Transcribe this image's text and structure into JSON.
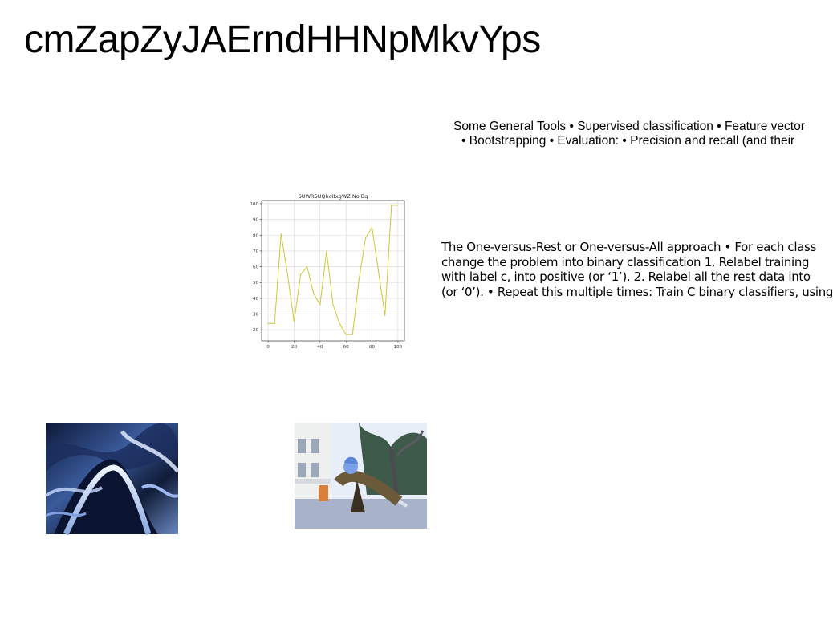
{
  "slide": {
    "title": "cmZapZyJAErndHHNpMkvYps",
    "bullets_line1": "Some General Tools • Supervised classification • Feature vector",
    "bullets_line2": "• Bootstrapping • Evaluation: • Precision and recall (and their",
    "ovr_lines": [
      "The One-versus-Rest or One-versus-All approach • For each class",
      "change the problem into binary classification 1. Relabel training",
      "with label c, into positive (or ‘1’). 2. Relabel all the rest data into",
      "(or ‘0’). • Repeat this multiple times: Train C binary classifiers, using"
    ]
  },
  "chart_data": {
    "type": "line",
    "title": "SUWRSUQhdIfxgWZ No Bq",
    "xlabel": "",
    "ylabel": "",
    "xlim": [
      -5,
      105
    ],
    "ylim": [
      13,
      102
    ],
    "grid": true,
    "x_ticks": [
      0,
      20,
      40,
      60,
      80,
      100
    ],
    "y_ticks": [
      20,
      30,
      40,
      50,
      60,
      70,
      80,
      90,
      100
    ],
    "series": [
      {
        "color": "#c8c832",
        "x": [
          0,
          5,
          10,
          15,
          20,
          25,
          30,
          35,
          40,
          45,
          50,
          55,
          60,
          65,
          70,
          75,
          80,
          85,
          90,
          95,
          100
        ],
        "y": [
          24,
          24,
          81,
          55,
          25,
          55,
          60,
          43,
          36,
          70,
          36,
          24,
          17,
          17,
          52,
          78,
          85,
          57,
          29,
          99,
          99
        ]
      }
    ]
  },
  "images": {
    "image1_subject": "abstract-chrome-waves",
    "image2_subject": "person-reaching-street"
  }
}
